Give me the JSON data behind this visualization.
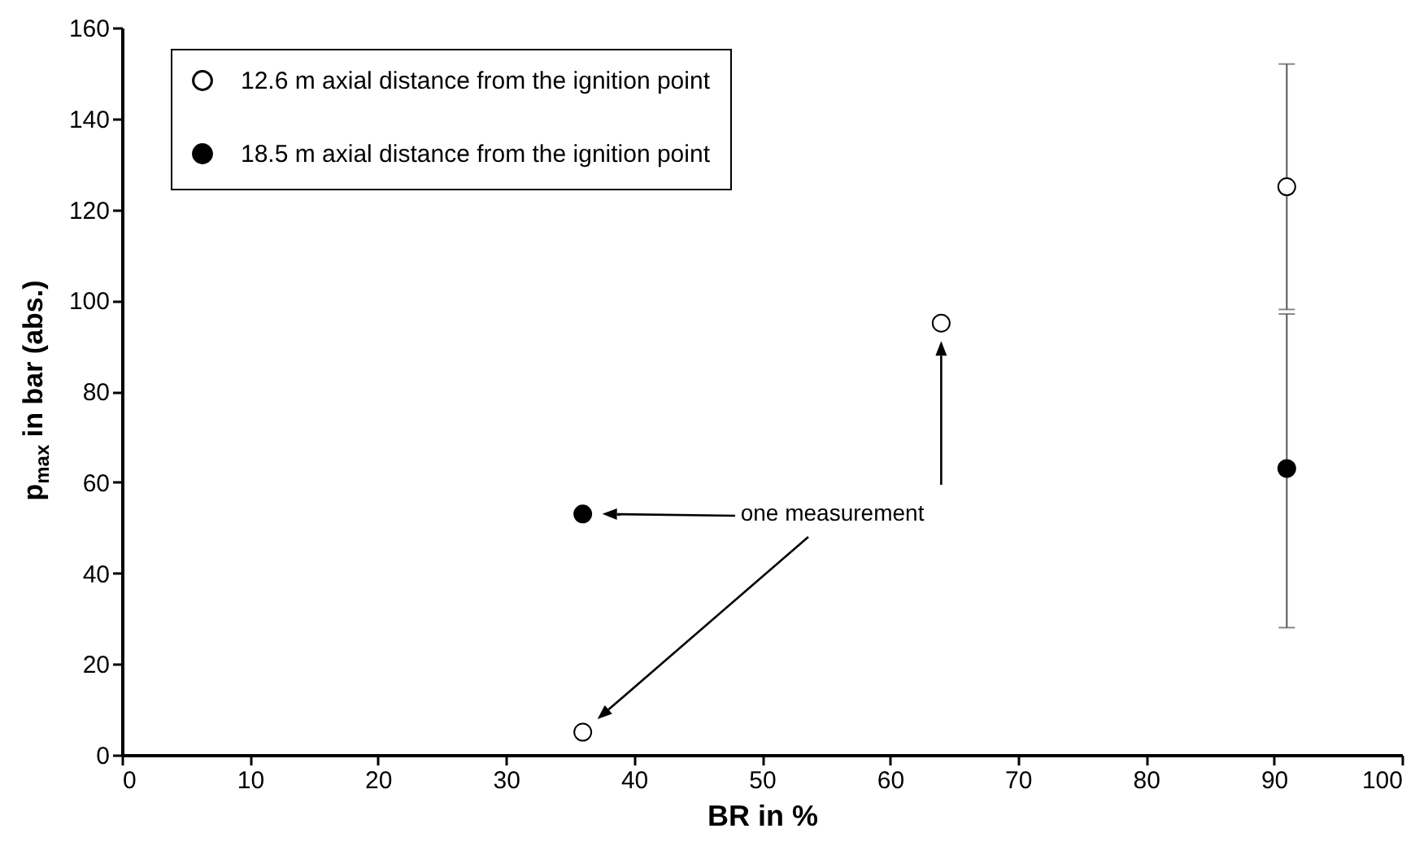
{
  "chart_data": {
    "type": "scatter",
    "xlabel": "BR in %",
    "ylabel": "p$_{max}$ in bar (abs.)",
    "xlim": [
      0,
      100
    ],
    "xticks": [
      0,
      10,
      20,
      30,
      40,
      50,
      60,
      70,
      80,
      90,
      100
    ],
    "ylim": [
      0,
      160
    ],
    "yticks": [
      0,
      20,
      40,
      60,
      80,
      100,
      120,
      140,
      160
    ],
    "grid": false,
    "legend": "top left",
    "marker": "circle",
    "annotations": [
      "one measurement"
    ],
    "series": [
      {
        "name": "12.6 m axial distance from the ignition point",
        "color": "#ffffff",
        "x": [
          36,
          64,
          91
        ],
        "values": [
          5,
          95,
          125
        ],
        "errors": [
          null,
          null,
          [
            98,
            152
          ]
        ]
      },
      {
        "name": "18.5 m axial distance from the ignition point",
        "color": "#000000",
        "x": [
          36,
          91
        ],
        "values": [
          53,
          63
        ],
        "errors": [
          null,
          [
            28,
            97
          ]
        ]
      }
    ]
  }
}
